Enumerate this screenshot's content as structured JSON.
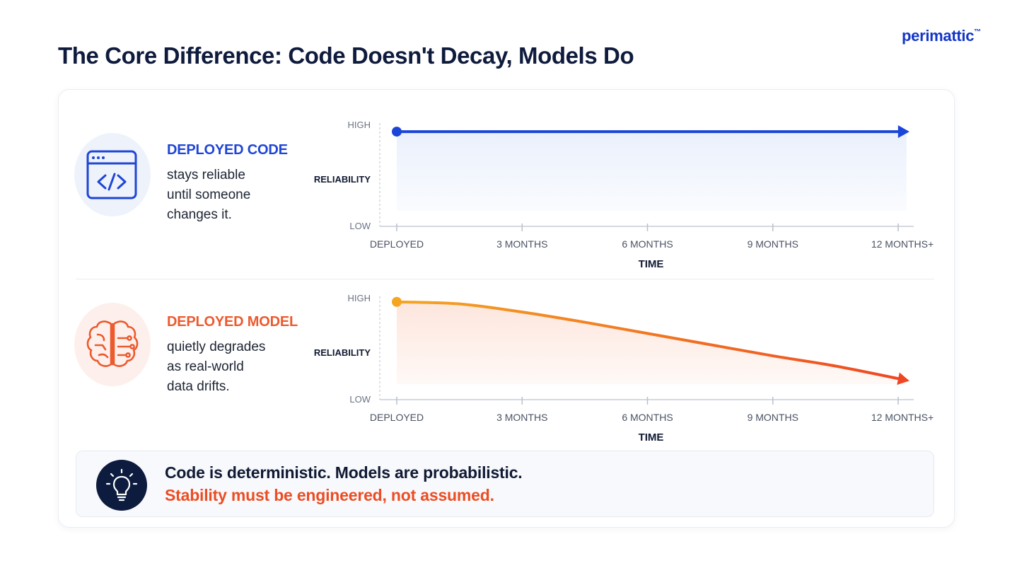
{
  "brand": {
    "name": "perimattic",
    "mark": "™"
  },
  "page_title": "The Core Difference: Code Doesn't Decay, Models Do",
  "rows": [
    {
      "title": "DEPLOYED CODE",
      "description_lines": [
        "stays reliable",
        "until someone",
        "changes it."
      ],
      "icon": "code-window-icon",
      "accent": "#1f45d6"
    },
    {
      "title": "DEPLOYED MODEL",
      "description_lines": [
        "quietly degrades",
        "as real-world",
        "data drifts."
      ],
      "icon": "brain-circuit-icon",
      "accent": "#ec5a2e"
    }
  ],
  "chart_data": [
    {
      "type": "line",
      "x": [
        "DEPLOYED",
        "3 MONTHS",
        "6 MONTHS",
        "9 MONTHS",
        "12 MONTHS+"
      ],
      "x_numeric": [
        0,
        3,
        6,
        9,
        12
      ],
      "series": [
        {
          "x": [
            0,
            3,
            6,
            9,
            12.2
          ],
          "values": [
            0.93,
            0.93,
            0.93,
            0.93,
            0.93
          ]
        }
      ],
      "xlabel": "TIME",
      "ylabel": "RELIABILITY",
      "y_ticks": [
        "HIGH",
        "LOW"
      ],
      "ylim": [
        0,
        1
      ],
      "xlim": [
        0,
        12
      ],
      "grid": false,
      "fill": "area",
      "colors": {
        "line": "#1a45d9",
        "fill": "#eaf0fc"
      }
    },
    {
      "type": "line",
      "x": [
        "DEPLOYED",
        "3 MONTHS",
        "6 MONTHS",
        "9 MONTHS",
        "12 MONTHS+"
      ],
      "x_numeric": [
        0,
        3,
        6,
        9,
        12
      ],
      "series": [
        {
          "x": [
            0,
            1.5,
            3,
            4.5,
            6,
            7.5,
            9,
            10.5,
            12.2
          ],
          "values": [
            0.96,
            0.94,
            0.86,
            0.76,
            0.65,
            0.54,
            0.43,
            0.33,
            0.19
          ]
        }
      ],
      "xlabel": "TIME",
      "ylabel": "RELIABILITY",
      "y_ticks": [
        "HIGH",
        "LOW"
      ],
      "ylim": [
        0,
        1
      ],
      "xlim": [
        0,
        12
      ],
      "grid": false,
      "fill": "area",
      "colors": {
        "line_start": "#f4a623",
        "line_end": "#ee4723",
        "fill": "#fde6dd"
      }
    }
  ],
  "tip": {
    "icon": "lightbulb-icon",
    "line1": "Code is deterministic. Models are probabilistic.",
    "line2": "Stability must be engineered, not assumed."
  }
}
